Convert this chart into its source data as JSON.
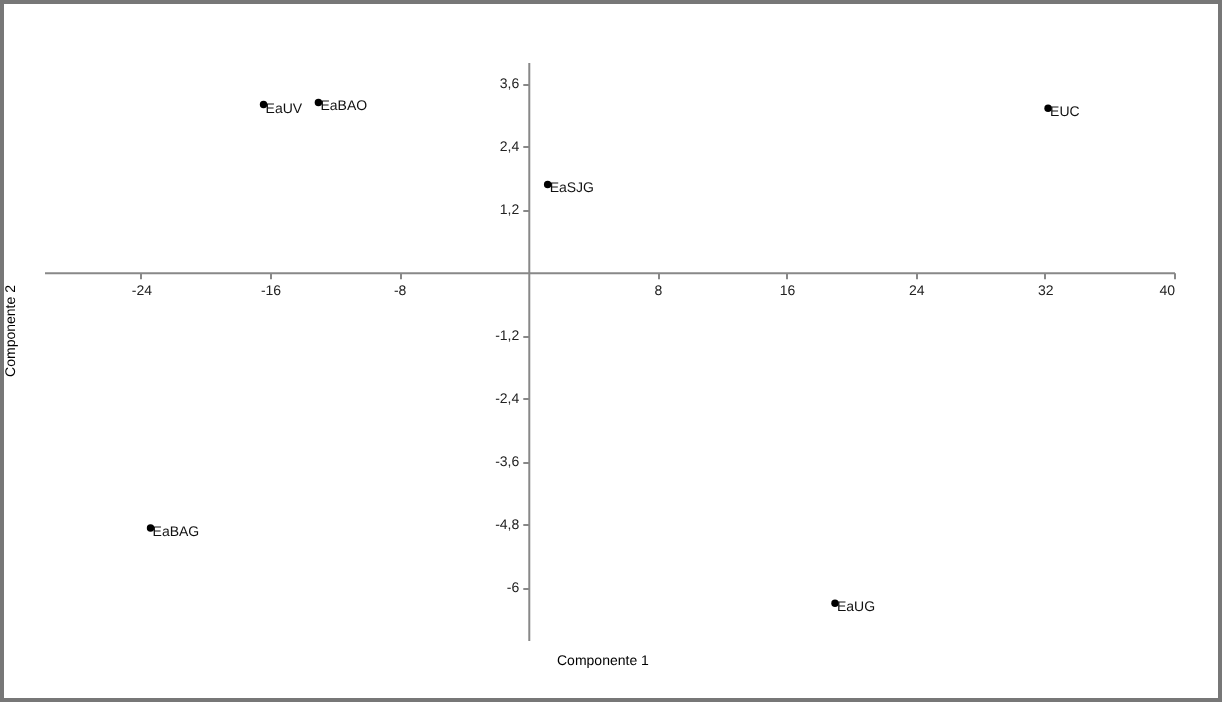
{
  "chart_data": {
    "type": "scatter",
    "xlabel": "Componente 1",
    "ylabel": "Componente 2",
    "series": [
      {
        "color": "#000000",
        "x": [
          -16.4,
          -13.0,
          1.2,
          32.2,
          -23.4,
          19.0
        ],
        "values": [
          3.19,
          3.23,
          1.67,
          3.12,
          -4.87,
          -6.3
        ]
      }
    ],
    "annotations": [
      {
        "text": "EaUV",
        "x": -16.4,
        "y": 3.19
      },
      {
        "text": "EaBAO",
        "x": -13.0,
        "y": 3.23
      },
      {
        "text": "EaSJG",
        "x": 1.2,
        "y": 1.67
      },
      {
        "text": "EUC",
        "x": 32.2,
        "y": 3.12
      },
      {
        "text": "EaBAG",
        "x": -23.4,
        "y": -4.87
      },
      {
        "text": "EaUG",
        "x": 19.0,
        "y": -6.3
      }
    ],
    "xlim": [
      -30,
      40
    ],
    "xticks": [
      -24,
      -16,
      -8,
      8,
      16,
      24,
      32,
      40
    ],
    "ylim": [
      -7,
      4
    ],
    "yticks": [
      {
        "value": 3.6,
        "label": "3,6"
      },
      {
        "value": 2.4,
        "label": "2,4"
      },
      {
        "value": 1.2,
        "label": "1,2"
      },
      {
        "value": -1.2,
        "label": "-1,2"
      },
      {
        "value": -2.4,
        "label": "-2,4"
      },
      {
        "value": -3.6,
        "label": "-3,6"
      },
      {
        "value": -4.8,
        "label": "-4,8"
      },
      {
        "value": -6,
        "label": "-6"
      }
    ],
    "marker": "circle",
    "grid": false
  }
}
